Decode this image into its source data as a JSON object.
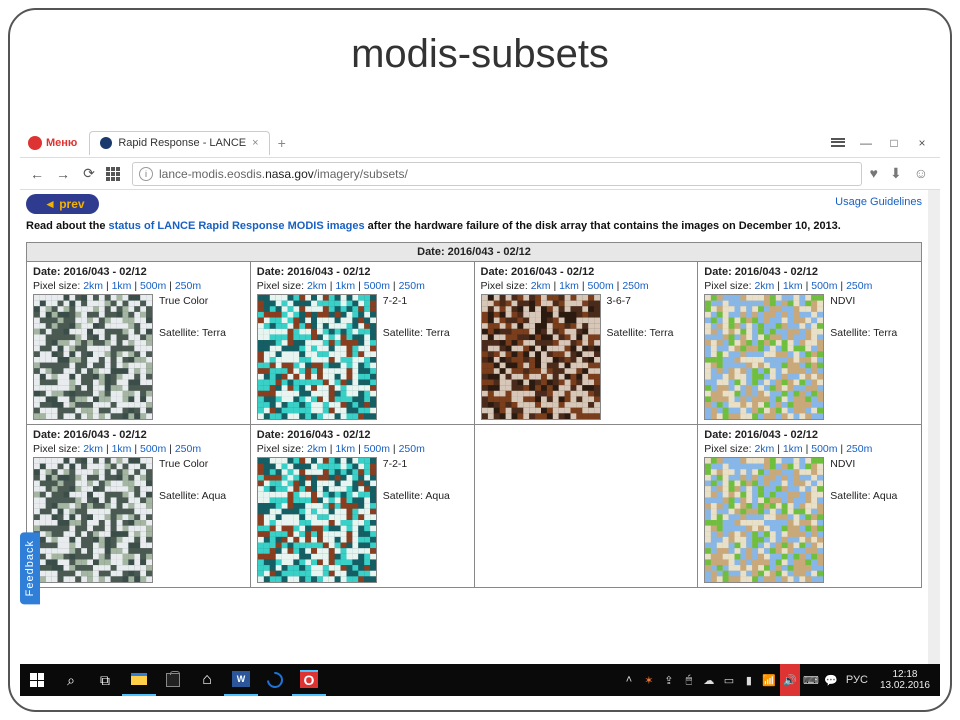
{
  "slide": {
    "title": "modis-subsets"
  },
  "browser": {
    "menu_label": "Меню",
    "tab_title": "Rapid Response - LANCE ",
    "url_prefix": "lance-modis.eosdis.",
    "url_domain": "nasa.gov",
    "url_path": "/imagery/subsets/"
  },
  "page": {
    "prev_label": "prev",
    "usage_link": "Usage Guidelines",
    "notice_pre": "Read about the ",
    "notice_link": "status of LANCE Rapid Response MODIS images",
    "notice_post": " after the hardware failure of the disk array that contains the images on December 10, 2013.",
    "feedback_label": "Feedback",
    "date_header": "Date: 2016/043 - 02/12",
    "pixel_prefix": "Pixel size: ",
    "pixel_opts": [
      "2km",
      "1km",
      "500m",
      "250m"
    ],
    "link_color": "#1860c3",
    "cells": [
      {
        "product": "True Color",
        "sat_label": "Satellite: Terra",
        "thumb": "truecolor",
        "empty": false
      },
      {
        "product": "7-2-1",
        "sat_label": "Satellite: Terra",
        "thumb": "b721",
        "empty": false
      },
      {
        "product": "3-6-7",
        "sat_label": "Satellite: Terra",
        "thumb": "b367",
        "empty": false
      },
      {
        "product": "NDVI",
        "sat_label": "Satellite: Terra",
        "thumb": "ndvi",
        "empty": false
      },
      {
        "product": "True Color",
        "sat_label": "Satellite: Aqua",
        "thumb": "truecolor",
        "empty": false
      },
      {
        "product": "7-2-1",
        "sat_label": "Satellite: Aqua",
        "thumb": "b721",
        "empty": false
      },
      {
        "product": "",
        "sat_label": "",
        "thumb": "",
        "empty": true
      },
      {
        "product": "NDVI",
        "sat_label": "Satellite: Aqua",
        "thumb": "ndvi",
        "empty": false
      }
    ]
  },
  "thumbs": {
    "truecolor": {
      "bg": "#4a5a52",
      "c1": "#e8ecef",
      "c2": "#a4b6a2",
      "c3": "#3a4d49"
    },
    "b721": {
      "bg": "#155e63",
      "c1": "#e8f4f0",
      "c2": "#39d0c8",
      "c3": "#8a3d1f"
    },
    "b367": {
      "bg": "#4a2a1a",
      "c1": "#d6c7b8",
      "c2": "#7a3e1c",
      "c3": "#2a1a10"
    },
    "ndvi": {
      "bg": "#c9a97a",
      "c1": "#86b7e8",
      "c2": "#6fbf3f",
      "c3": "#e8e0c8"
    }
  },
  "taskbar": {
    "time": "12:18",
    "date": "13.02.2016",
    "lang": "РУС"
  }
}
